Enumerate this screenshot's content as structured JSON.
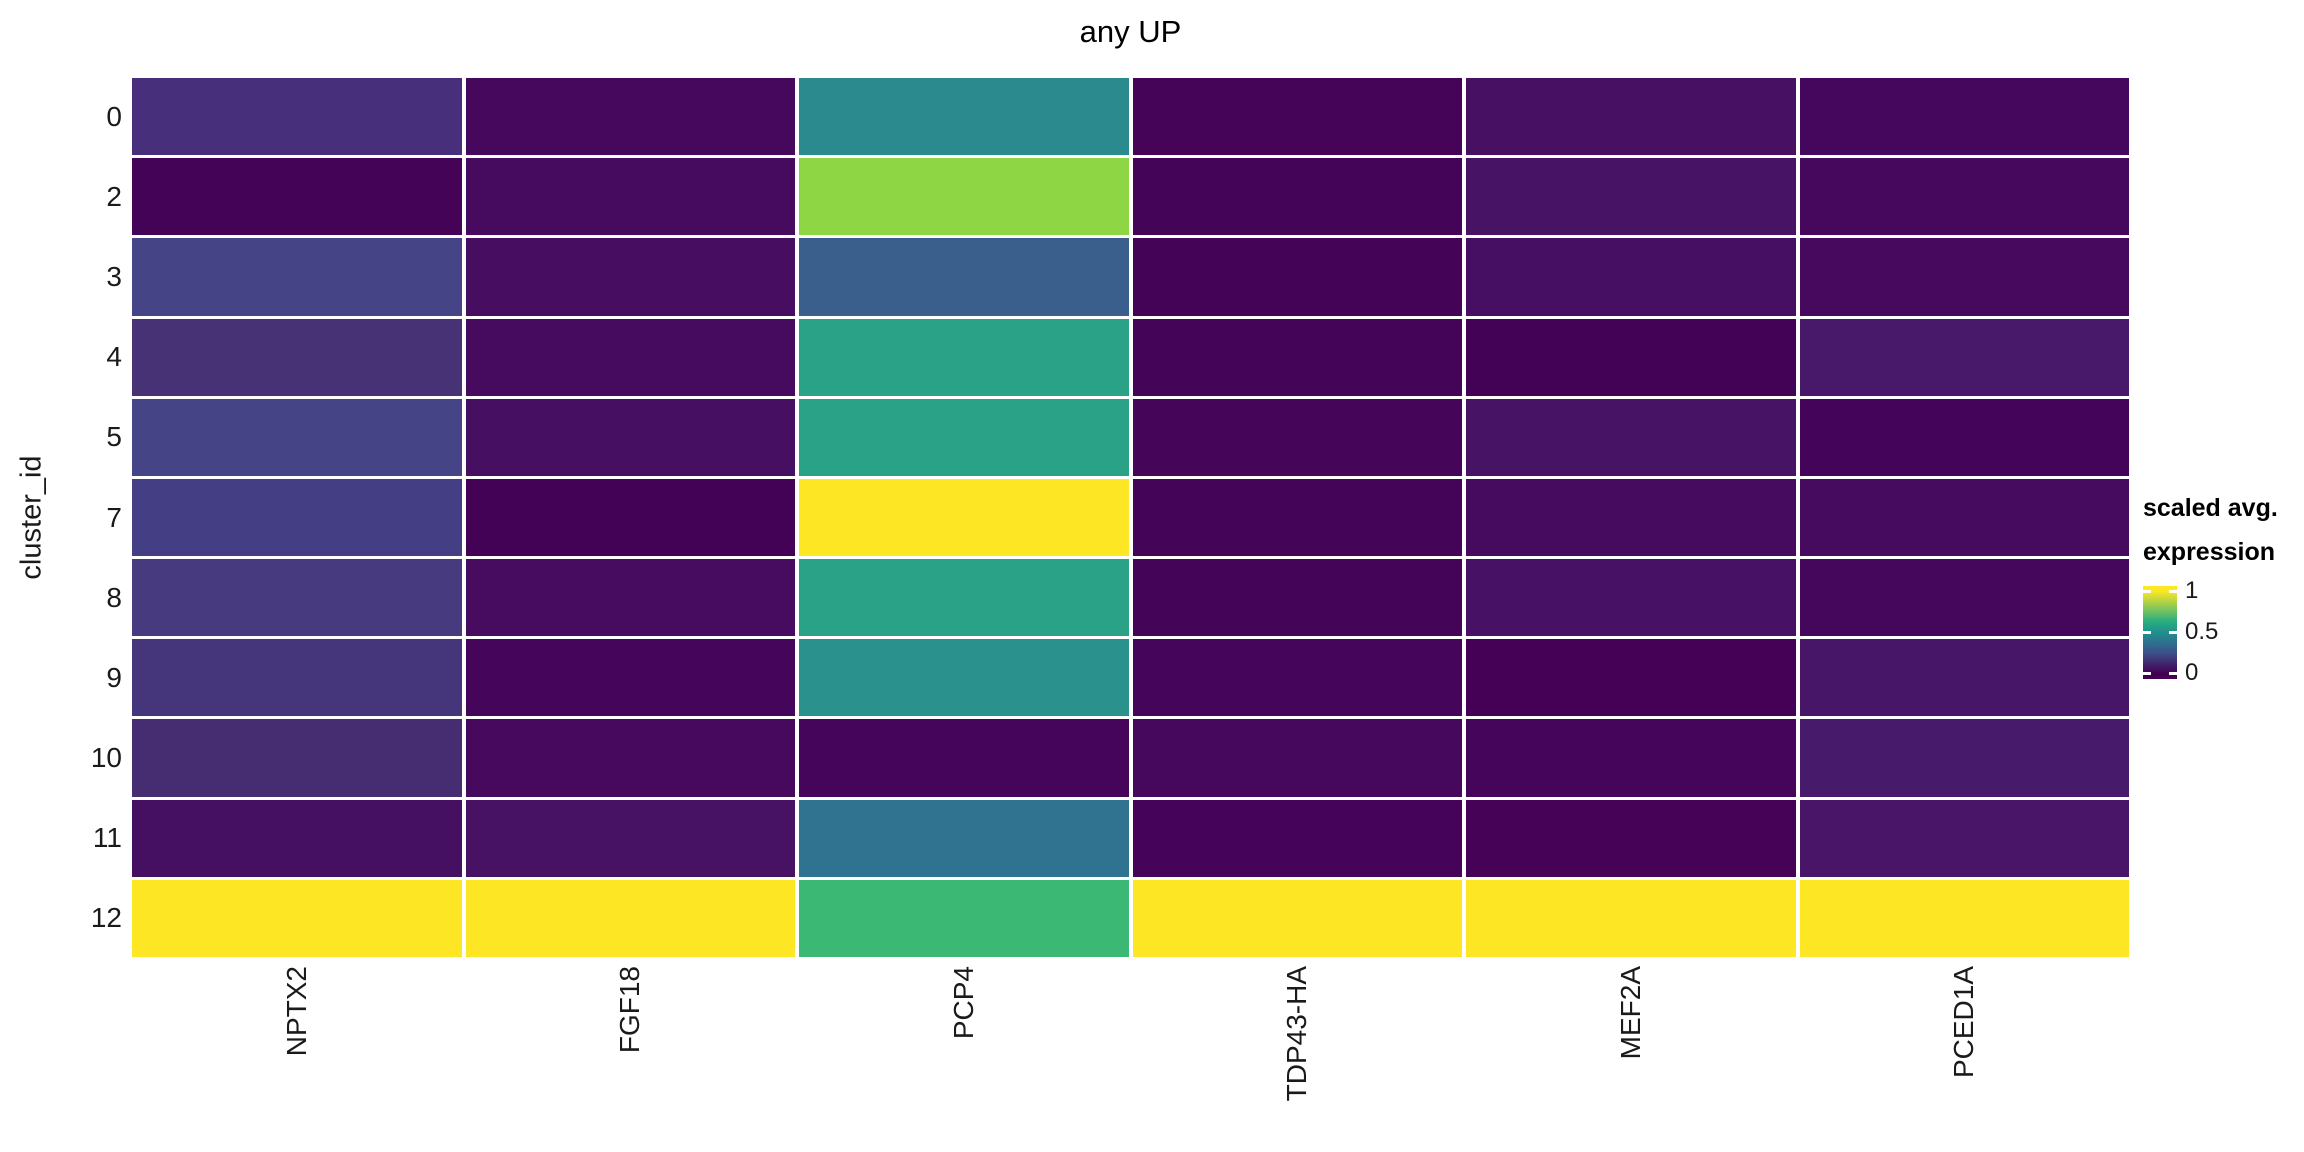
{
  "title": "any UP",
  "axes": {
    "y_title": "cluster_id",
    "y_ticks": [
      "0",
      "2",
      "3",
      "4",
      "5",
      "7",
      "8",
      "9",
      "10",
      "11",
      "12"
    ],
    "x_ticks": [
      "NPTX2",
      "FGF18",
      "PCP4",
      "TDP43-HA",
      "MEF2A",
      "PCED1A"
    ]
  },
  "legend": {
    "title_line1": "scaled avg.",
    "title_line2": "expression",
    "ticks": [
      {
        "label": "1",
        "value": 1.0
      },
      {
        "label": "0.5",
        "value": 0.5
      },
      {
        "label": "0",
        "value": 0.0
      }
    ],
    "gradient_top_color": "#fde725",
    "gradient_mid_color": "#21908d",
    "gradient_bottom_color": "#440154"
  },
  "chart_data": {
    "type": "heatmap",
    "title": "any UP",
    "xlabel": "",
    "ylabel": "cluster_id",
    "x_categories": [
      "NPTX2",
      "FGF18",
      "PCP4",
      "TDP43-HA",
      "MEF2A",
      "PCED1A"
    ],
    "y_categories": [
      "0",
      "2",
      "3",
      "4",
      "5",
      "7",
      "8",
      "9",
      "10",
      "11",
      "12"
    ],
    "value_name": "scaled avg. expression",
    "value_range": [
      0,
      1
    ],
    "palette": "viridis",
    "palette_anchors": [
      "#440154",
      "#472d7b",
      "#3b528b",
      "#2c728e",
      "#21908d",
      "#27ad81",
      "#5dc863",
      "#aadc32",
      "#fde725"
    ],
    "grid": false,
    "legend_position": "right",
    "values": [
      [
        0.13,
        0.04,
        0.47,
        0.02,
        0.08,
        0.03
      ],
      [
        0.01,
        0.05,
        0.83,
        0.02,
        0.09,
        0.04
      ],
      [
        0.22,
        0.06,
        0.3,
        0.01,
        0.07,
        0.04
      ],
      [
        0.14,
        0.05,
        0.6,
        0.02,
        0.01,
        0.11
      ],
      [
        0.22,
        0.07,
        0.6,
        0.03,
        0.09,
        0.02
      ],
      [
        0.21,
        0.01,
        1.0,
        0.02,
        0.05,
        0.04
      ],
      [
        0.18,
        0.06,
        0.6,
        0.02,
        0.08,
        0.03
      ],
      [
        0.16,
        0.02,
        0.52,
        0.02,
        0.0,
        0.1
      ],
      [
        0.12,
        0.04,
        0.02,
        0.04,
        0.02,
        0.11
      ],
      [
        0.07,
        0.08,
        0.38,
        0.02,
        0.01,
        0.09
      ],
      [
        1.0,
        1.0,
        0.72,
        1.0,
        1.0,
        1.0
      ]
    ],
    "cell_colors": [
      [
        "#472f7b",
        "#46085c",
        "#2b8a8d",
        "#450458",
        "#471063",
        "#45075e"
      ],
      [
        "#440357",
        "#460a5e",
        "#8fd644",
        "#440458",
        "#471465",
        "#45085c"
      ],
      [
        "#444487",
        "#470d61",
        "#3b5f8d",
        "#440357",
        "#470f63",
        "#46095d"
      ],
      [
        "#473276",
        "#460b5e",
        "#2aa287",
        "#440458",
        "#440256",
        "#48186b"
      ],
      [
        "#444487",
        "#470f62",
        "#2aa287",
        "#45065a",
        "#471364",
        "#44045a"
      ],
      [
        "#443f85",
        "#440256",
        "#fde725",
        "#440458",
        "#460b5e",
        "#460a5e"
      ],
      [
        "#473a7e",
        "#470c60",
        "#2aa287",
        "#440458",
        "#471266",
        "#45075c"
      ],
      [
        "#45357b",
        "#45055a",
        "#2b918d",
        "#45055a",
        "#440155",
        "#481669"
      ],
      [
        "#462d72",
        "#46095d",
        "#45055a",
        "#46085c",
        "#45055a",
        "#481a6c"
      ],
      [
        "#451062",
        "#471164",
        "#2f7390",
        "#45045a",
        "#450257",
        "#481569"
      ],
      [
        "#fde725",
        "#fde725",
        "#3cb875",
        "#fde725",
        "#fde725",
        "#fde725"
      ]
    ]
  },
  "layout_numbers": {
    "n_rows": 11,
    "n_cols": 6
  }
}
